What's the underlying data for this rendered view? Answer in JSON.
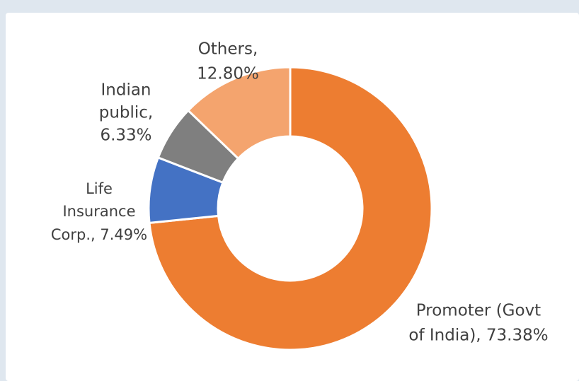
{
  "chart_data": {
    "type": "donut",
    "labels": [
      [
        "Promoter (Govt",
        "of India), 73.38%"
      ],
      [
        "Life",
        "Insurance",
        "Corp., 7.49%"
      ],
      [
        "Indian",
        "public,",
        "6.33%"
      ],
      [
        "Others,",
        "12.80%"
      ]
    ],
    "values": [
      73.38,
      7.49,
      6.33,
      12.8
    ],
    "colors": [
      "#ed7d31",
      "#4472c4",
      "#7f7f7f",
      "#f4a46e"
    ]
  }
}
